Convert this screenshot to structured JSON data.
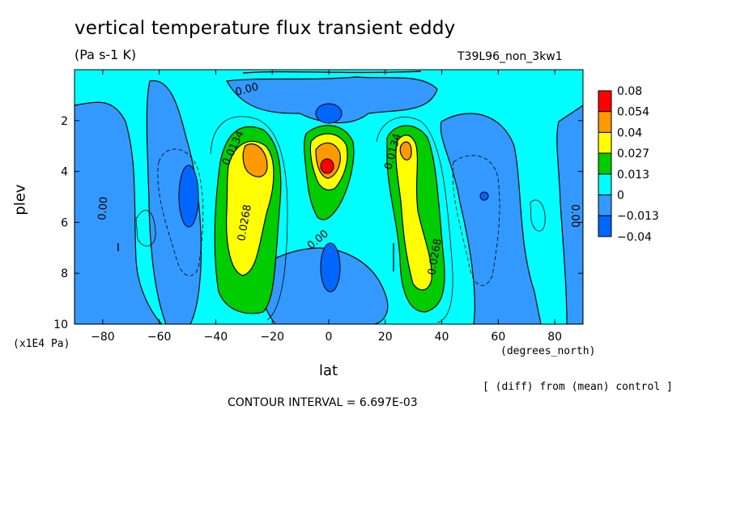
{
  "chart_data": {
    "type": "heatmap",
    "title": "vertical temperature flux transient eddy",
    "units": "(Pa s-1 K)",
    "run_id": "T39L96_non_3kw1",
    "xlabel": "lat",
    "x_units": "(degrees_north)",
    "ylabel": "plev",
    "y_scale": "(x1E4 Pa)",
    "xlim": [
      -90,
      90
    ],
    "ylim": [
      10,
      0
    ],
    "x_ticks": [
      -80,
      -60,
      -40,
      -20,
      0,
      20,
      40,
      60,
      80
    ],
    "y_ticks": [
      2,
      4,
      6,
      8,
      10
    ],
    "x_tick_labels": [
      "-80",
      "-60",
      "-40",
      "-20",
      "0",
      "20",
      "40",
      "60",
      "80"
    ],
    "y_tick_labels": [
      "2",
      "4",
      "6",
      "8",
      "10"
    ],
    "colorbar": {
      "labels": [
        "0.08",
        "0.054",
        "0.04",
        "0.027",
        "0.013",
        "0",
        "-0.013",
        "-0.04"
      ],
      "colors": [
        "#ff0000",
        "#ff9900",
        "#ffff00",
        "#00cc00",
        "#00ffff",
        "#3399ff",
        "#0066ff"
      ]
    },
    "contour_labels": [
      "0.00",
      "0.0134",
      "0.0268",
      "0.0134",
      "0.0268",
      "0.00",
      "0.00",
      "0.00"
    ],
    "features": [
      {
        "lat": -30,
        "plev": 3.5,
        "value": 0.045
      },
      {
        "lat": 0,
        "plev": 3.9,
        "value": 0.08
      },
      {
        "lat": 27,
        "plev": 3.5,
        "value": 0.035
      },
      {
        "lat": -50,
        "plev": 4.5,
        "value": -0.02
      },
      {
        "lat": 0,
        "plev": 7.5,
        "value": -0.02
      },
      {
        "lat": 55,
        "plev": 5,
        "value": -0.02
      }
    ],
    "diff_note": "[ (diff) from (mean) control ]",
    "contour_interval": "CONTOUR INTERVAL = 6.697E-03",
    "grid": false,
    "legend_position": "right"
  }
}
